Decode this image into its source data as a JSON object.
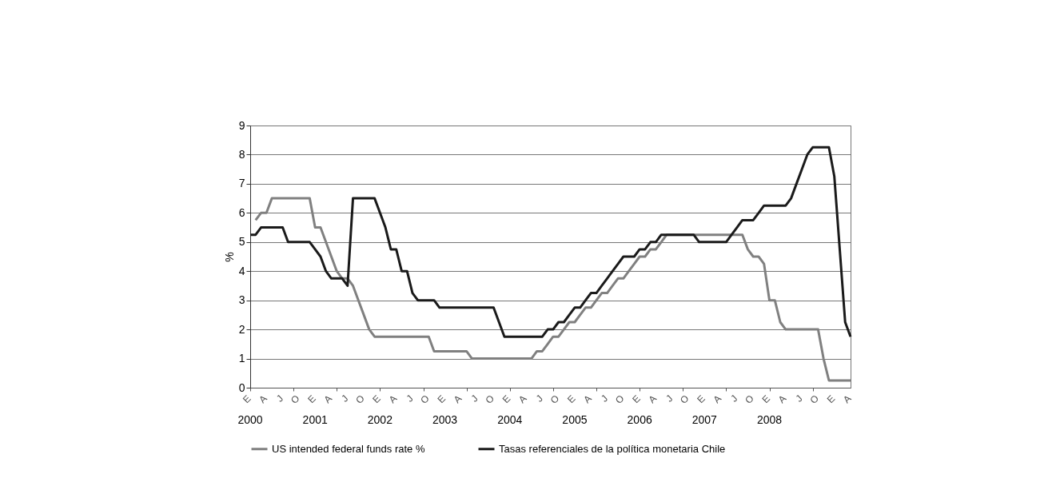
{
  "chart_data": {
    "type": "line",
    "ylabel": "%",
    "ylim": [
      0,
      9
    ],
    "yticks": [
      0,
      1,
      2,
      3,
      4,
      5,
      6,
      7,
      8,
      9
    ],
    "grid": "y",
    "legend": "bottom",
    "line_style": "solid",
    "categories": [
      "E\n2000",
      null,
      null,
      "A",
      null,
      null,
      "J",
      null,
      null,
      "O",
      null,
      null,
      "E\n2001",
      null,
      null,
      "A",
      null,
      null,
      "J",
      null,
      null,
      "O",
      null,
      null,
      "E\n2002",
      null,
      null,
      "A",
      null,
      null,
      "J",
      null,
      null,
      "O",
      null,
      null,
      "E\n2003",
      null,
      null,
      "A",
      null,
      null,
      "J",
      null,
      null,
      "O",
      null,
      null,
      "E\n2004",
      null,
      null,
      "A",
      null,
      null,
      "J",
      null,
      null,
      "O",
      null,
      null,
      "E\n2005",
      null,
      null,
      "A",
      null,
      null,
      "J",
      null,
      null,
      "O",
      null,
      null,
      "E\n2006",
      null,
      null,
      "A",
      null,
      null,
      "J",
      null,
      null,
      "O",
      null,
      null,
      "E\n2007",
      null,
      null,
      "A",
      null,
      null,
      "J",
      null,
      null,
      "O",
      null,
      null,
      "E\n2008",
      null,
      null,
      "A",
      null,
      null,
      "J",
      null,
      null,
      "O",
      null,
      null,
      "E",
      null,
      null,
      "A"
    ],
    "series": [
      {
        "name": "US intended federal funds rate %",
        "color": "#808080",
        "values": [
          null,
          5.75,
          6.0,
          6.0,
          6.5,
          6.5,
          6.5,
          6.5,
          6.5,
          6.5,
          6.5,
          6.5,
          5.5,
          5.5,
          5.0,
          4.5,
          4.0,
          3.75,
          3.75,
          3.5,
          3.0,
          2.5,
          2.0,
          1.75,
          1.75,
          1.75,
          1.75,
          1.75,
          1.75,
          1.75,
          1.75,
          1.75,
          1.75,
          1.75,
          1.25,
          1.25,
          1.25,
          1.25,
          1.25,
          1.25,
          1.25,
          1.0,
          1.0,
          1.0,
          1.0,
          1.0,
          1.0,
          1.0,
          1.0,
          1.0,
          1.0,
          1.0,
          1.0,
          1.25,
          1.25,
          1.5,
          1.75,
          1.75,
          2.0,
          2.25,
          2.25,
          2.5,
          2.75,
          2.75,
          3.0,
          3.25,
          3.25,
          3.5,
          3.75,
          3.75,
          4.0,
          4.25,
          4.5,
          4.5,
          4.75,
          4.75,
          5.0,
          5.25,
          5.25,
          5.25,
          5.25,
          5.25,
          5.25,
          5.25,
          5.25,
          5.25,
          5.25,
          5.25,
          5.25,
          5.25,
          5.25,
          5.25,
          4.75,
          4.5,
          4.5,
          4.25,
          3.0,
          3.0,
          2.25,
          2.0,
          2.0,
          2.0,
          2.0,
          2.0,
          2.0,
          2.0,
          1.0,
          0.25,
          0.25,
          0.25,
          0.25,
          0.25
        ]
      },
      {
        "name": "Tasas referenciales de la política monetaria Chile",
        "color": "#1a1a1a",
        "values": [
          5.25,
          5.25,
          5.5,
          5.5,
          5.5,
          5.5,
          5.5,
          5.0,
          5.0,
          5.0,
          5.0,
          5.0,
          4.75,
          4.5,
          4.0,
          3.75,
          3.75,
          3.75,
          3.5,
          6.5,
          6.5,
          6.5,
          6.5,
          6.5,
          6.0,
          5.5,
          4.75,
          4.75,
          4.0,
          4.0,
          3.25,
          3.0,
          3.0,
          3.0,
          3.0,
          2.75,
          2.75,
          2.75,
          2.75,
          2.75,
          2.75,
          2.75,
          2.75,
          2.75,
          2.75,
          2.75,
          2.25,
          1.75,
          1.75,
          1.75,
          1.75,
          1.75,
          1.75,
          1.75,
          1.75,
          2.0,
          2.0,
          2.25,
          2.25,
          2.5,
          2.75,
          2.75,
          3.0,
          3.25,
          3.25,
          3.5,
          3.75,
          4.0,
          4.25,
          4.5,
          4.5,
          4.5,
          4.75,
          4.75,
          5.0,
          5.0,
          5.25,
          5.25,
          5.25,
          5.25,
          5.25,
          5.25,
          5.25,
          5.0,
          5.0,
          5.0,
          5.0,
          5.0,
          5.0,
          5.25,
          5.5,
          5.75,
          5.75,
          5.75,
          6.0,
          6.25,
          6.25,
          6.25,
          6.25,
          6.25,
          6.5,
          7.0,
          7.5,
          8.0,
          8.25,
          8.25,
          8.25,
          8.25,
          7.25,
          4.75,
          2.25,
          1.75
        ]
      }
    ]
  }
}
